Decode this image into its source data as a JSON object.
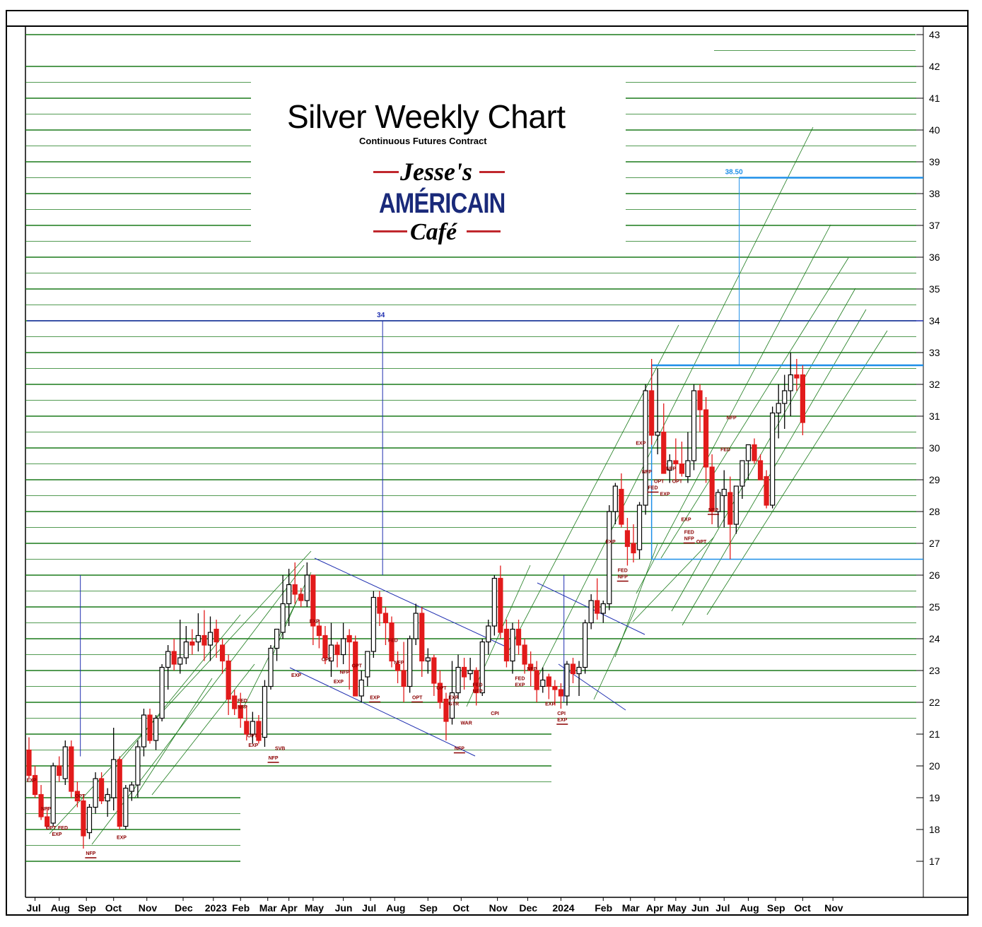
{
  "chart_data": {
    "type": "candlestick",
    "title": "Silver Weekly Chart",
    "subtitle": "Continuous Futures Contract",
    "logo": {
      "line1": "Jesse's",
      "line2": "AMÉRICAIN",
      "line3": "Café"
    },
    "colors": {
      "up": "#ffffff",
      "down": "#e21b1b",
      "grid": "#1a7a1a",
      "channel": "#1a7a1a",
      "level": "#1f2fb0",
      "range": "#1e8fe8",
      "annotation": "#8b0000"
    },
    "ylim": [
      16,
      43.5
    ],
    "y_ticks": [
      17,
      18,
      19,
      20,
      21,
      22,
      23,
      24,
      25,
      26,
      27,
      28,
      29,
      30,
      31,
      32,
      33,
      34,
      35,
      36,
      37,
      38,
      39,
      40,
      41,
      42,
      43
    ],
    "x_ticks": [
      {
        "w": 1,
        "label": "Jul"
      },
      {
        "w": 5,
        "label": "Aug"
      },
      {
        "w": 9.5,
        "label": "Sep"
      },
      {
        "w": 14,
        "label": "Oct"
      },
      {
        "w": 19.5,
        "label": "Nov"
      },
      {
        "w": 25.5,
        "label": "Dec"
      },
      {
        "w": 30.5,
        "label": "2023",
        "bold": true
      },
      {
        "w": 35,
        "label": "Feb"
      },
      {
        "w": 39.5,
        "label": "Mar"
      },
      {
        "w": 43,
        "label": "Apr"
      },
      {
        "w": 47,
        "label": "May"
      },
      {
        "w": 52,
        "label": "Jun"
      },
      {
        "w": 56.5,
        "label": "Jul"
      },
      {
        "w": 60.5,
        "label": "Aug"
      },
      {
        "w": 66,
        "label": "Sep"
      },
      {
        "w": 71.5,
        "label": "Oct"
      },
      {
        "w": 77.5,
        "label": "Nov"
      },
      {
        "w": 82.5,
        "label": "Dec"
      },
      {
        "w": 88,
        "label": "2024",
        "bold": true
      },
      {
        "w": 95,
        "label": "Feb"
      },
      {
        "w": 99.5,
        "label": "Mar"
      },
      {
        "w": 103.5,
        "label": "Apr"
      },
      {
        "w": 107,
        "label": "May"
      },
      {
        "w": 111,
        "label": "Jun"
      },
      {
        "w": 115,
        "label": "Jul"
      },
      {
        "w": 119,
        "label": "Aug"
      },
      {
        "w": 123.5,
        "label": "Sep"
      },
      {
        "w": 128,
        "label": "Oct"
      },
      {
        "w": 133,
        "label": "Nov"
      }
    ],
    "candles": [
      [
        20.5,
        20.9,
        19.6,
        19.7
      ],
      [
        19.7,
        20.0,
        19.0,
        19.1
      ],
      [
        19.1,
        19.4,
        18.3,
        18.4
      ],
      [
        18.4,
        18.7,
        18.0,
        18.1
      ],
      [
        18.2,
        20.1,
        18.1,
        20.0
      ],
      [
        20.0,
        20.3,
        19.5,
        19.7
      ],
      [
        19.6,
        20.8,
        19.4,
        20.6
      ],
      [
        20.6,
        20.8,
        19.0,
        19.2
      ],
      [
        19.2,
        19.5,
        18.7,
        18.9
      ],
      [
        18.9,
        19.1,
        17.4,
        17.8
      ],
      [
        17.9,
        18.8,
        17.7,
        18.7
      ],
      [
        18.7,
        19.8,
        18.5,
        19.6
      ],
      [
        19.6,
        19.8,
        18.8,
        18.9
      ],
      [
        18.9,
        19.3,
        18.4,
        19.1
      ],
      [
        19.0,
        21.2,
        18.6,
        20.2
      ],
      [
        20.2,
        20.3,
        18.0,
        18.1
      ],
      [
        18.1,
        19.4,
        18.0,
        19.3
      ],
      [
        19.2,
        19.5,
        18.9,
        19.4
      ],
      [
        19.4,
        20.8,
        19.0,
        20.6
      ],
      [
        20.6,
        21.8,
        20.3,
        21.6
      ],
      [
        21.6,
        21.8,
        20.7,
        20.8
      ],
      [
        20.8,
        21.6,
        20.5,
        21.5
      ],
      [
        21.5,
        23.2,
        21.4,
        23.1
      ],
      [
        23.1,
        23.8,
        22.4,
        23.6
      ],
      [
        23.6,
        24.0,
        23.0,
        23.2
      ],
      [
        23.2,
        24.6,
        22.9,
        23.4
      ],
      [
        23.4,
        24.4,
        23.2,
        23.9
      ],
      [
        23.9,
        24.3,
        23.5,
        23.8
      ],
      [
        23.9,
        24.8,
        23.6,
        24.1
      ],
      [
        24.1,
        24.9,
        23.3,
        23.8
      ],
      [
        23.8,
        24.7,
        23.3,
        24.2
      ],
      [
        24.3,
        24.6,
        23.4,
        23.9
      ],
      [
        23.8,
        24.0,
        22.9,
        23.3
      ],
      [
        23.3,
        23.5,
        21.6,
        22.1
      ],
      [
        22.2,
        22.4,
        21.6,
        21.8
      ],
      [
        21.9,
        22.3,
        21.2,
        21.5
      ],
      [
        21.4,
        21.9,
        20.8,
        21.0
      ],
      [
        21.0,
        21.7,
        20.7,
        21.4
      ],
      [
        21.4,
        21.6,
        20.7,
        20.8
      ],
      [
        20.9,
        22.7,
        20.6,
        22.5
      ],
      [
        22.5,
        23.8,
        22.4,
        23.7
      ],
      [
        23.7,
        24.3,
        23.3,
        24.3
      ],
      [
        24.2,
        26.0,
        24.0,
        25.1
      ],
      [
        25.1,
        26.2,
        24.4,
        25.7
      ],
      [
        25.7,
        26.4,
        25.1,
        25.4
      ],
      [
        25.4,
        25.6,
        25.0,
        25.2
      ],
      [
        25.2,
        26.4,
        25.0,
        26.0
      ],
      [
        26.0,
        26.0,
        23.8,
        24.4
      ],
      [
        24.4,
        24.6,
        23.7,
        24.1
      ],
      [
        24.1,
        24.4,
        23.2,
        23.4
      ],
      [
        23.3,
        24.5,
        22.8,
        23.8
      ],
      [
        23.8,
        23.9,
        23.1,
        23.5
      ],
      [
        23.5,
        24.5,
        23.2,
        24.0
      ],
      [
        24.1,
        24.3,
        22.4,
        23.9
      ],
      [
        23.9,
        24.1,
        22.2,
        22.2
      ],
      [
        22.2,
        23.0,
        22.0,
        22.7
      ],
      [
        22.8,
        23.6,
        22.5,
        23.6
      ],
      [
        23.6,
        25.5,
        23.4,
        25.3
      ],
      [
        25.3,
        25.5,
        24.4,
        24.8
      ],
      [
        24.8,
        25.0,
        23.8,
        24.5
      ],
      [
        24.5,
        24.7,
        23.1,
        23.3
      ],
      [
        23.2,
        23.6,
        22.6,
        23.0
      ],
      [
        23.0,
        23.9,
        22.0,
        22.5
      ],
      [
        22.5,
        24.1,
        22.3,
        24.0
      ],
      [
        24.0,
        25.1,
        23.8,
        24.8
      ],
      [
        24.8,
        25.0,
        22.8,
        23.3
      ],
      [
        23.3,
        23.7,
        22.9,
        23.4
      ],
      [
        23.4,
        23.5,
        22.2,
        22.6
      ],
      [
        22.6,
        23.0,
        21.8,
        22.0
      ],
      [
        22.1,
        22.3,
        20.8,
        21.4
      ],
      [
        21.5,
        23.3,
        21.3,
        22.3
      ],
      [
        22.3,
        23.5,
        22.1,
        23.1
      ],
      [
        23.1,
        23.4,
        22.4,
        22.8
      ],
      [
        22.9,
        23.4,
        22.7,
        23.0
      ],
      [
        23.0,
        23.1,
        21.9,
        22.3
      ],
      [
        22.3,
        24.0,
        22.2,
        23.9
      ],
      [
        23.9,
        24.6,
        23.5,
        24.4
      ],
      [
        24.4,
        26.0,
        24.1,
        25.9
      ],
      [
        25.9,
        26.3,
        24.0,
        24.2
      ],
      [
        24.3,
        24.6,
        23.1,
        23.3
      ],
      [
        23.3,
        24.5,
        22.9,
        24.3
      ],
      [
        24.3,
        24.6,
        23.5,
        23.8
      ],
      [
        23.8,
        24.0,
        22.9,
        23.2
      ],
      [
        23.2,
        23.6,
        22.5,
        23.0
      ],
      [
        23.0,
        23.3,
        22.0,
        22.4
      ],
      [
        22.5,
        23.1,
        22.3,
        22.7
      ],
      [
        22.8,
        22.9,
        22.1,
        22.5
      ],
      [
        22.5,
        22.7,
        21.9,
        22.4
      ],
      [
        22.4,
        22.6,
        21.8,
        22.2
      ],
      [
        22.2,
        23.3,
        21.9,
        23.2
      ],
      [
        23.2,
        23.4,
        22.6,
        22.9
      ],
      [
        22.9,
        23.3,
        22.2,
        23.1
      ],
      [
        23.1,
        24.6,
        22.9,
        24.5
      ],
      [
        24.5,
        25.4,
        24.3,
        25.2
      ],
      [
        25.2,
        25.9,
        24.6,
        24.8
      ],
      [
        24.8,
        25.2,
        24.5,
        25.1
      ],
      [
        25.1,
        28.2,
        24.9,
        28.0
      ],
      [
        28.0,
        28.9,
        27.6,
        28.8
      ],
      [
        28.7,
        29.2,
        27.5,
        27.6
      ],
      [
        27.4,
        27.8,
        26.3,
        26.9
      ],
      [
        27.0,
        27.6,
        26.4,
        26.7
      ],
      [
        26.8,
        28.3,
        26.5,
        28.2
      ],
      [
        28.2,
        32.0,
        27.9,
        31.8
      ],
      [
        31.8,
        32.8,
        30.1,
        30.4
      ],
      [
        30.4,
        32.5,
        29.8,
        30.5
      ],
      [
        30.5,
        31.4,
        29.2,
        29.2
      ],
      [
        29.3,
        29.8,
        28.9,
        29.6
      ],
      [
        29.6,
        30.3,
        29.0,
        29.5
      ],
      [
        29.5,
        30.2,
        29.1,
        29.2
      ],
      [
        29.1,
        30.5,
        28.9,
        29.6
      ],
      [
        29.6,
        32.0,
        29.3,
        31.8
      ],
      [
        31.8,
        32.0,
        30.5,
        31.2
      ],
      [
        31.2,
        31.6,
        28.9,
        29.4
      ],
      [
        29.4,
        29.8,
        27.6,
        28.0
      ],
      [
        28.0,
        28.7,
        27.5,
        28.6
      ],
      [
        28.5,
        29.3,
        27.5,
        28.7
      ],
      [
        28.6,
        29.1,
        26.5,
        27.6
      ],
      [
        27.6,
        28.8,
        27.3,
        28.8
      ],
      [
        28.8,
        29.5,
        28.4,
        29.6
      ],
      [
        29.6,
        30.0,
        29.0,
        30.1
      ],
      [
        30.1,
        30.3,
        29.5,
        29.6
      ],
      [
        29.6,
        29.8,
        29.1,
        29.0
      ],
      [
        29.1,
        29.3,
        28.1,
        28.2
      ],
      [
        28.2,
        31.3,
        28.1,
        31.1
      ],
      [
        31.1,
        32.0,
        30.3,
        31.4
      ],
      [
        31.4,
        32.3,
        30.6,
        31.8
      ],
      [
        31.8,
        33.0,
        31.0,
        32.3
      ],
      [
        32.3,
        32.8,
        31.8,
        32.2
      ],
      [
        32.3,
        32.6,
        30.4,
        30.8
      ]
    ],
    "horizontal_levels": [
      {
        "y": 34,
        "label": "34",
        "x_label_w": 58.5,
        "x0_w": -1,
        "x1_w": 164
      },
      {
        "y": 38.5,
        "label": "38.50",
        "x_label_w": 117.5,
        "x0_w": 117.5,
        "x1_w": 164
      }
    ],
    "vertical_marks": [
      {
        "w": 8.5,
        "y0": 20.3,
        "y1": 26.0
      },
      {
        "w": 58.5,
        "y0": 26.0,
        "y1": 34.0
      },
      {
        "w": 88.5,
        "y0": 22.0,
        "y1": 26.0
      },
      {
        "w": 117.5,
        "y0": 32.6,
        "y1": 38.5
      }
    ],
    "annotations": [
      {
        "w": 0.3,
        "y": 19.5,
        "text": "EXP"
      },
      {
        "w": 2.7,
        "y": 18.6,
        "text": "NFP"
      },
      {
        "w": 3.5,
        "y": 18.0,
        "text": "OPT"
      },
      {
        "w": 4.5,
        "y": 17.8,
        "text": "EXP"
      },
      {
        "w": 5.5,
        "y": 18.0,
        "text": "FED"
      },
      {
        "w": 8.3,
        "y": 19.0,
        "text": "OPT"
      },
      {
        "w": 10.1,
        "y": 17.2,
        "text": "NFP",
        "underline": true
      },
      {
        "w": 15.2,
        "y": 17.7,
        "text": "EXP"
      },
      {
        "w": 35.2,
        "y": 22.0,
        "text": "FED"
      },
      {
        "w": 35.2,
        "y": 21.8,
        "text": "NFP"
      },
      {
        "w": 36.8,
        "y": 20.9,
        "text": "OPT"
      },
      {
        "w": 37.0,
        "y": 20.6,
        "text": "EXP"
      },
      {
        "w": 40.3,
        "y": 20.2,
        "text": "NFP",
        "underline": true
      },
      {
        "w": 41.4,
        "y": 20.5,
        "text": "SVB"
      },
      {
        "w": 44.1,
        "y": 22.8,
        "text": "EXP"
      },
      {
        "w": 47.1,
        "y": 24.5,
        "text": "EXP"
      },
      {
        "w": 49.1,
        "y": 23.3,
        "text": "OPT"
      },
      {
        "w": 51.1,
        "y": 22.6,
        "text": "EXP"
      },
      {
        "w": 52.1,
        "y": 22.9,
        "text": "NFP"
      },
      {
        "w": 54.1,
        "y": 23.1,
        "text": "OPT"
      },
      {
        "w": 57.1,
        "y": 22.1,
        "text": "EXP",
        "underline": true
      },
      {
        "w": 60.1,
        "y": 23.9,
        "text": "FED"
      },
      {
        "w": 61.1,
        "y": 23.2,
        "text": "NFP"
      },
      {
        "w": 64.1,
        "y": 22.1,
        "text": "OPT",
        "underline": true
      },
      {
        "w": 68.1,
        "y": 22.4,
        "text": "OPT"
      },
      {
        "w": 70.1,
        "y": 22.1,
        "text": "EXP"
      },
      {
        "w": 70.1,
        "y": 21.9,
        "text": "GTR"
      },
      {
        "w": 71.1,
        "y": 20.5,
        "text": "NFP",
        "underline": true
      },
      {
        "w": 72.1,
        "y": 21.3,
        "text": "WAR"
      },
      {
        "w": 74.1,
        "y": 22.5,
        "text": "FED"
      },
      {
        "w": 74.1,
        "y": 22.3,
        "text": "NFP"
      },
      {
        "w": 77.1,
        "y": 21.6,
        "text": "CPI"
      },
      {
        "w": 81.1,
        "y": 22.7,
        "text": "FED"
      },
      {
        "w": 81.1,
        "y": 22.5,
        "text": "EXP"
      },
      {
        "w": 83.1,
        "y": 23.0,
        "text": "NFP"
      },
      {
        "w": 86.1,
        "y": 21.9,
        "text": "EXP"
      },
      {
        "w": 88.1,
        "y": 21.6,
        "text": "CPI"
      },
      {
        "w": 88.1,
        "y": 21.4,
        "text": "EXP",
        "underline": true
      },
      {
        "w": 96.1,
        "y": 27.0,
        "text": "EXP"
      },
      {
        "w": 98.1,
        "y": 26.1,
        "text": "FED"
      },
      {
        "w": 98.1,
        "y": 25.9,
        "text": "NFP",
        "underline": true
      },
      {
        "w": 101.1,
        "y": 30.1,
        "text": "EXP"
      },
      {
        "w": 102.1,
        "y": 29.2,
        "text": "NFP"
      },
      {
        "w": 103.1,
        "y": 28.7,
        "text": "FED",
        "underline": true
      },
      {
        "w": 104.1,
        "y": 28.9,
        "text": "OPT"
      },
      {
        "w": 105.1,
        "y": 28.5,
        "text": "EXP"
      },
      {
        "w": 106.1,
        "y": 29.3,
        "text": "NFP"
      },
      {
        "w": 107.1,
        "y": 28.9,
        "text": "OPT"
      },
      {
        "w": 108.6,
        "y": 27.7,
        "text": "EXP"
      },
      {
        "w": 109.1,
        "y": 27.3,
        "text": "FED"
      },
      {
        "w": 109.1,
        "y": 27.1,
        "text": "NFP",
        "underline": true
      },
      {
        "w": 111.1,
        "y": 27.0,
        "text": "OPT"
      },
      {
        "w": 113.1,
        "y": 28.0,
        "text": "NFP",
        "underline": true
      },
      {
        "w": 116.1,
        "y": 30.9,
        "text": "NFP"
      },
      {
        "w": 115.1,
        "y": 29.9,
        "text": "FED"
      }
    ]
  }
}
